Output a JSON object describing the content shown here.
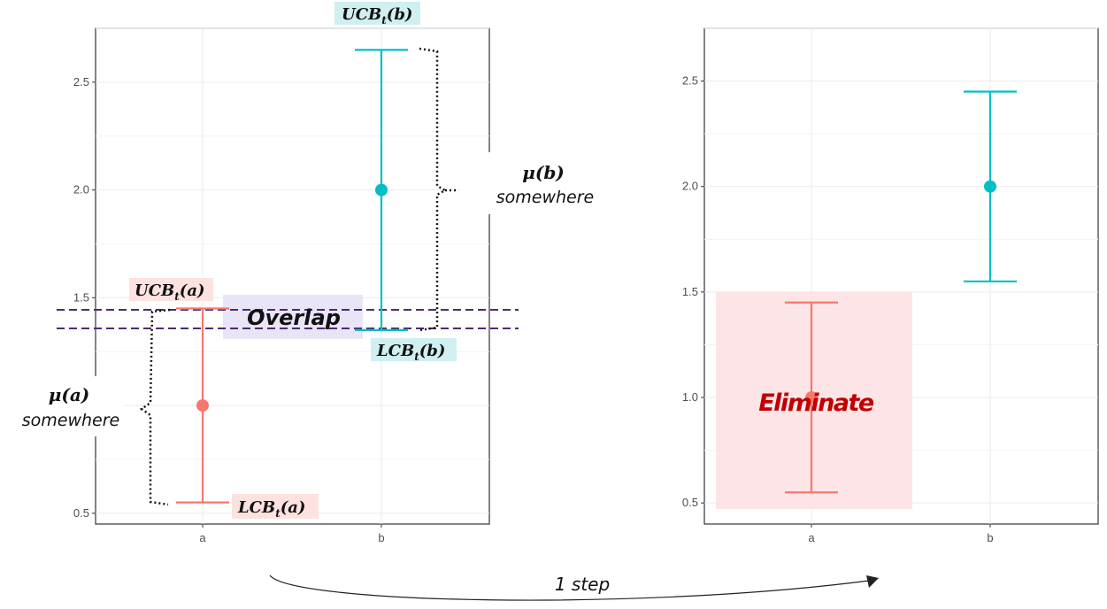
{
  "colors": {
    "a": "#f8766d",
    "b": "#00bfc4",
    "overlap_line": "#4b2c73"
  },
  "chart_data": [
    {
      "type": "errorbar",
      "categories": [
        "a",
        "b"
      ],
      "ylim": [
        0.45,
        2.75
      ],
      "yticks": [
        0.5,
        1.0,
        1.5,
        2.0,
        2.5
      ],
      "grid": true,
      "points": [
        {
          "category": "a",
          "y": 1.0,
          "lower": 0.55,
          "upper": 1.45,
          "color": "#f8766d"
        },
        {
          "category": "b",
          "y": 2.0,
          "lower": 1.35,
          "upper": 2.65,
          "color": "#00bfc4"
        }
      ],
      "reference_lines": [
        1.45,
        1.35
      ],
      "annotations": {
        "overlap": "Overlap",
        "mu_a": "μ(a)",
        "mu_b": "μ(b)",
        "somewhere": "somewhere",
        "ucb": "UCB",
        "lcb": "LCB",
        "sub_t": "t",
        "arg_a": "(a)",
        "arg_b": "(b)"
      }
    },
    {
      "type": "errorbar",
      "categories": [
        "a",
        "b"
      ],
      "ylim": [
        0.4,
        2.75
      ],
      "yticks": [
        0.5,
        1.0,
        1.5,
        2.0,
        2.5
      ],
      "grid": true,
      "points": [
        {
          "category": "a",
          "y": 1.0,
          "lower": 0.55,
          "upper": 1.45,
          "color": "#f8766d"
        },
        {
          "category": "b",
          "y": 2.0,
          "lower": 1.55,
          "upper": 2.45,
          "color": "#00bfc4"
        }
      ],
      "annotations": {
        "eliminate": "Eliminate"
      }
    }
  ],
  "transition": {
    "label": "1 step"
  }
}
